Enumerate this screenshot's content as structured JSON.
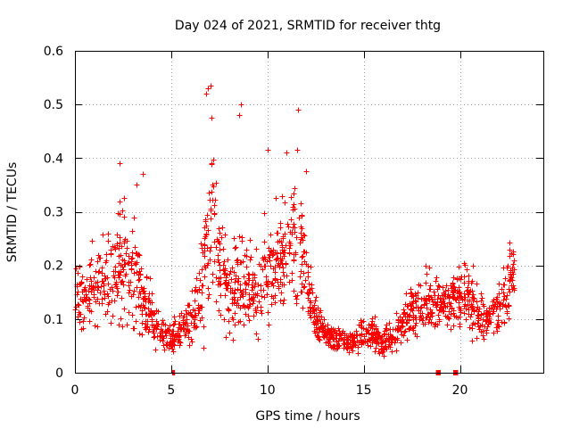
{
  "chart_data": {
    "type": "scatter",
    "title": "Day 024 of 2021, SRMTID for receiver thtg",
    "xlabel": "GPS time / hours",
    "ylabel": "SRMTID / TECUs",
    "xlim": [
      0,
      24.33
    ],
    "ylim": [
      0,
      0.6
    ],
    "x_ticks": [
      0,
      5,
      10,
      15,
      20
    ],
    "y_ticks": [
      0,
      0.1,
      0.2,
      0.3,
      0.4,
      0.5,
      0.6
    ],
    "y_tick_labels": [
      "0",
      "0.1",
      "0.2",
      "0.3",
      "0.4",
      "0.5",
      "0.6"
    ],
    "grid": true,
    "marker": "plus",
    "color": "#ff0000",
    "envelope_hours": [
      0,
      0.5,
      1,
      1.5,
      2,
      2.3,
      2.5,
      3,
      3.3,
      3.6,
      4,
      4.5,
      5,
      5.5,
      6,
      6.5,
      6.8,
      7.1,
      7.5,
      8,
      8.5,
      9,
      9.5,
      10,
      10.5,
      11,
      11.3,
      11.7,
      12,
      12.5,
      13,
      13.5,
      14,
      14.5,
      15,
      15.5,
      16,
      16.5,
      17,
      17.5,
      18,
      18.5,
      19,
      19.5,
      20,
      20.5,
      21,
      21.5,
      22,
      22.5,
      22.8
    ],
    "envelope_center": [
      0.12,
      0.14,
      0.15,
      0.16,
      0.17,
      0.21,
      0.19,
      0.17,
      0.16,
      0.13,
      0.1,
      0.07,
      0.06,
      0.08,
      0.1,
      0.14,
      0.24,
      0.28,
      0.2,
      0.14,
      0.17,
      0.15,
      0.14,
      0.18,
      0.2,
      0.22,
      0.24,
      0.23,
      0.16,
      0.1,
      0.07,
      0.06,
      0.06,
      0.06,
      0.07,
      0.07,
      0.06,
      0.06,
      0.09,
      0.11,
      0.12,
      0.13,
      0.12,
      0.13,
      0.15,
      0.13,
      0.11,
      0.1,
      0.12,
      0.16,
      0.2
    ],
    "envelope_spread": [
      0.04,
      0.05,
      0.06,
      0.06,
      0.07,
      0.09,
      0.08,
      0.07,
      0.07,
      0.05,
      0.04,
      0.02,
      0.02,
      0.03,
      0.04,
      0.06,
      0.14,
      0.13,
      0.09,
      0.06,
      0.08,
      0.06,
      0.06,
      0.09,
      0.08,
      0.09,
      0.11,
      0.1,
      0.06,
      0.03,
      0.02,
      0.02,
      0.02,
      0.02,
      0.02,
      0.02,
      0.02,
      0.02,
      0.03,
      0.04,
      0.04,
      0.05,
      0.04,
      0.04,
      0.05,
      0.05,
      0.04,
      0.04,
      0.04,
      0.05,
      0.04
    ],
    "approx_point_count": 1700,
    "peaks": [
      {
        "x": 2.3,
        "y": 0.39
      },
      {
        "x": 3.5,
        "y": 0.37
      },
      {
        "x": 6.9,
        "y": 0.53
      },
      {
        "x": 7.05,
        "y": 0.535
      },
      {
        "x": 6.8,
        "y": 0.52
      },
      {
        "x": 8.6,
        "y": 0.5
      },
      {
        "x": 8.55,
        "y": 0.48
      },
      {
        "x": 10,
        "y": 0.415
      },
      {
        "x": 11.6,
        "y": 0.49
      },
      {
        "x": 11.0,
        "y": 0.41
      },
      {
        "x": 12.0,
        "y": 0.375
      },
      {
        "x": 3.2,
        "y": 0.35
      }
    ],
    "gap_markers": [
      {
        "x_start": 5.05,
        "x_end": 5.2,
        "y": 0
      },
      {
        "x_start": 18.75,
        "x_end": 19.0,
        "y": 0
      },
      {
        "x_start": 19.65,
        "x_end": 19.9,
        "y": 0
      }
    ]
  }
}
